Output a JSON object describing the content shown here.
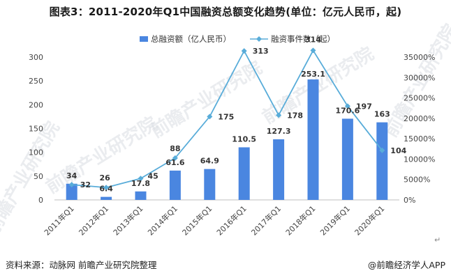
{
  "title": "图表3：2011-2020年Q1中国融资总额变化趋势(单位：亿元人民币，起)",
  "source": "资料来源：动脉网 前瞻产业研究院整理",
  "credit": "@前瞻经济学人APP",
  "return_mark": "↵",
  "watermark": {
    "text": "前瞻产业研究院",
    "color": "#d9dde3"
  },
  "chart_data": {
    "type": "bar+line",
    "categories": [
      "2011年Q1",
      "2012年Q1",
      "2013年Q1",
      "2014年Q1",
      "2015年Q1",
      "2016年Q1",
      "2017年Q1",
      "2018年Q1",
      "2019年Q1",
      "2020年Q1"
    ],
    "series": [
      {
        "name": "总融资额（亿人民币）",
        "type": "bar",
        "axis": "left",
        "color": "#4a86e0",
        "values": [
          34,
          6.4,
          17.8,
          61.6,
          64.9,
          110.5,
          127.3,
          253.1,
          170.6,
          163
        ],
        "labels": [
          "34",
          "6.4",
          "17.8",
          "61.6",
          "64.9",
          "110.5",
          "127.3",
          "253.1",
          "170.6",
          "163"
        ]
      },
      {
        "name": "融资事件数（起）",
        "type": "line",
        "axis": "left",
        "color": "#58acd9",
        "values": [
          32,
          26,
          45,
          88,
          175,
          313,
          178,
          314,
          197,
          104
        ],
        "labels": [
          "32",
          "26",
          "45",
          "88",
          "175",
          "313",
          "178",
          "314",
          "197",
          "104"
        ]
      }
    ],
    "y_left": {
      "min": 0,
      "max": 300,
      "ticks": [
        "0",
        "50",
        "100",
        "150",
        "200",
        "250",
        "300"
      ]
    },
    "y_right": {
      "ticks": [
        "0%",
        "5000%",
        "10000%",
        "15000%",
        "20000%",
        "25000%",
        "30000%",
        "35000%"
      ]
    },
    "legend_position": "top-center",
    "grid": false
  }
}
